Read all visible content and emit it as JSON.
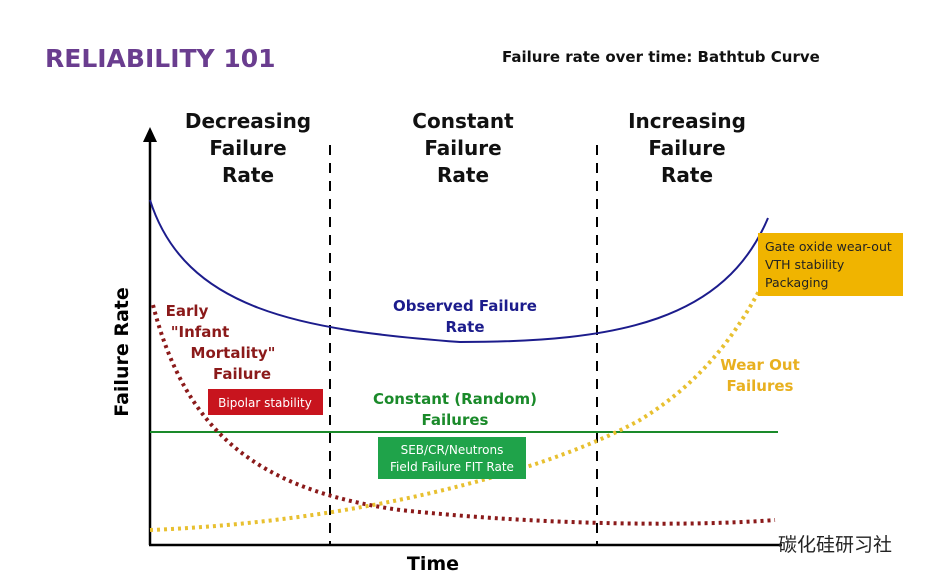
{
  "header": {
    "title": "RELIABILITY 101",
    "subtitle": "Failure rate over time: Bathtub Curve"
  },
  "axes": {
    "y_label": "Failure Rate",
    "x_label": "Time"
  },
  "regions": [
    {
      "lines": [
        "Decreasing",
        "Failure",
        "Rate"
      ]
    },
    {
      "lines": [
        "Constant",
        "Failure",
        "Rate"
      ]
    },
    {
      "lines": [
        "Increasing",
        "Failure",
        "Rate"
      ]
    }
  ],
  "curves": {
    "observed": {
      "lines": [
        "Observed Failure",
        "Rate"
      ]
    },
    "early": {
      "lines": [
        "Early",
        "\"Infant",
        "Mortality\"",
        "Failure"
      ]
    },
    "constant": {
      "lines": [
        "Constant (Random)",
        "Failures"
      ]
    },
    "wear_out": {
      "lines": [
        "Wear Out",
        "Failures"
      ]
    }
  },
  "boxes": {
    "bipolar": {
      "lines": [
        "Bipolar stability"
      ]
    },
    "seb": {
      "lines": [
        "SEB/CR/Neutrons",
        "Field Failure FIT Rate"
      ]
    },
    "gate": {
      "lines": [
        "Gate oxide wear-out",
        "VTH stability",
        "Packaging"
      ]
    }
  },
  "watermark": "碳化硅研习社"
}
